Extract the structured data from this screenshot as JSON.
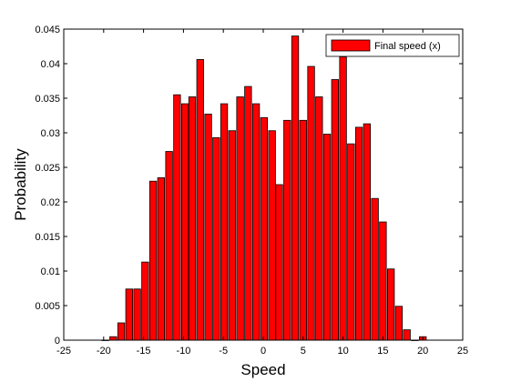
{
  "chart_data": {
    "type": "bar",
    "x": [
      -19.8,
      -18.8,
      -17.8,
      -16.8,
      -15.8,
      -14.8,
      -13.8,
      -12.8,
      -11.8,
      -10.8,
      -9.8,
      -8.9,
      -7.9,
      -6.9,
      -5.9,
      -4.9,
      -3.9,
      -2.9,
      -1.9,
      -0.9,
      0.1,
      1.1,
      2.0,
      3.0,
      4.0,
      5.0,
      6.0,
      7.0,
      8.0,
      9.0,
      10.0,
      11.0,
      12.0,
      13.0,
      14.0,
      15.0,
      16.0,
      17.0,
      18.0,
      19.0,
      20.0
    ],
    "series": [
      {
        "name": "Final speed (x)",
        "color": "#ff0000",
        "values": [
          0,
          0.0005,
          0.0025,
          0.0074,
          0.0074,
          0.0113,
          0.023,
          0.0235,
          0.0273,
          0.0355,
          0.0342,
          0.0352,
          0.0406,
          0.0327,
          0.0293,
          0.0342,
          0.0303,
          0.0352,
          0.0367,
          0.0342,
          0.0322,
          0.0303,
          0.0225,
          0.0318,
          0.044,
          0.0318,
          0.0396,
          0.0352,
          0.0298,
          0.0377,
          0.041,
          0.0284,
          0.0308,
          0.0313,
          0.0205,
          0.0171,
          0.0103,
          0.0049,
          0.0015,
          0,
          0.0005
        ]
      }
    ],
    "xlabel": "Speed",
    "ylabel": "Probability",
    "xlim": [
      -25,
      25
    ],
    "xticks": [
      -25,
      -20,
      -15,
      -10,
      -5,
      0,
      5,
      10,
      15,
      20,
      25
    ],
    "ylim": [
      0,
      0.045
    ],
    "yticks": [
      0,
      0.005,
      0.01,
      0.015,
      0.02,
      0.025,
      0.03,
      0.035,
      0.04,
      0.045
    ],
    "legend": "top-right"
  }
}
